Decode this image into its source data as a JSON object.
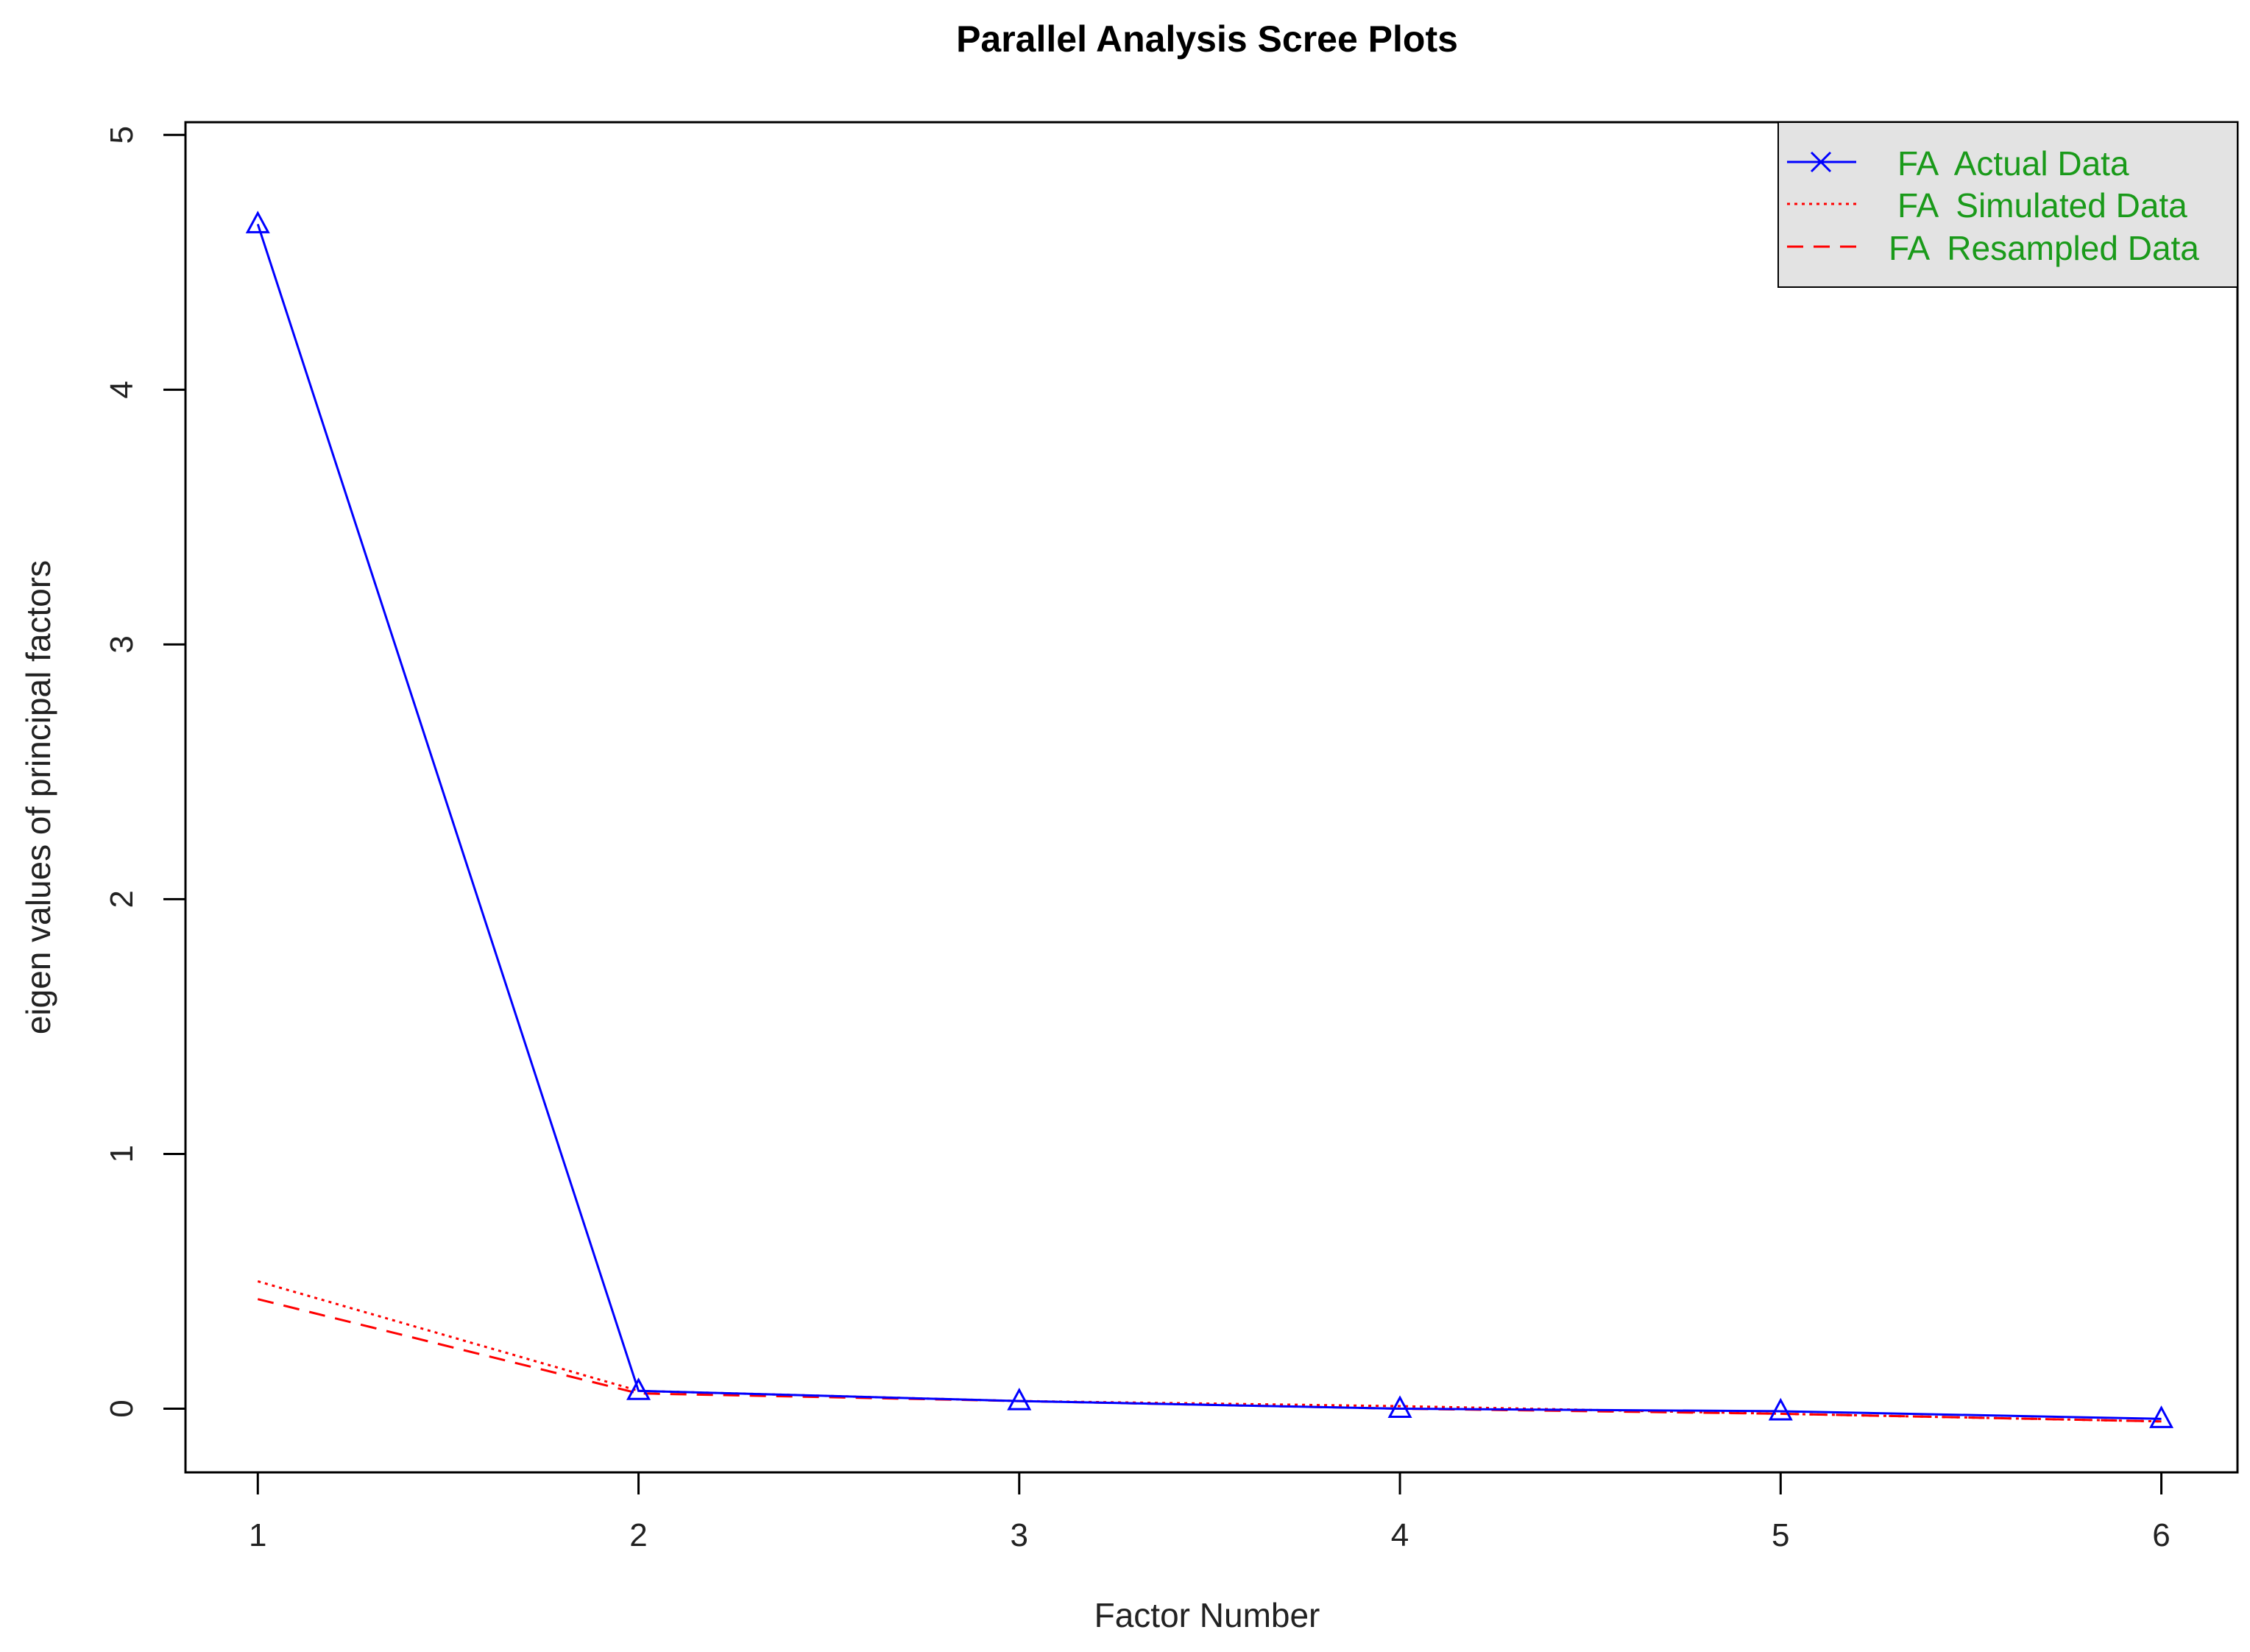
{
  "chart_data": {
    "type": "line",
    "title": "Parallel Analysis Scree Plots",
    "xlabel": "Factor Number",
    "ylabel": "eigen values of principal factors",
    "x": [
      1,
      2,
      3,
      4,
      5,
      6
    ],
    "xlim": [
      0.81,
      6.2
    ],
    "ylim": [
      -0.25,
      5.05
    ],
    "xticks": [
      "1",
      "2",
      "3",
      "4",
      "5",
      "6"
    ],
    "yticks": [
      "0",
      "1",
      "2",
      "3",
      "4",
      "5"
    ],
    "grid": false,
    "legend_position": "top-right",
    "series": [
      {
        "name": "FA  Actual Data",
        "values": [
          4.65,
          0.07,
          0.03,
          0.0,
          -0.01,
          -0.04
        ],
        "color": "#0000ff",
        "linestyle": "solid",
        "marker": "triangle",
        "legend_marker": "x"
      },
      {
        "name": "FA  Simulated Data",
        "values": [
          0.5,
          0.07,
          0.03,
          0.01,
          -0.02,
          -0.05
        ],
        "color": "#ff0000",
        "linestyle": "dotted",
        "marker": "none"
      },
      {
        "name": "FA  Resampled Data",
        "values": [
          0.43,
          0.06,
          0.03,
          0.0,
          -0.02,
          -0.05
        ],
        "color": "#ff0000",
        "linestyle": "dashed",
        "marker": "none"
      }
    ]
  }
}
